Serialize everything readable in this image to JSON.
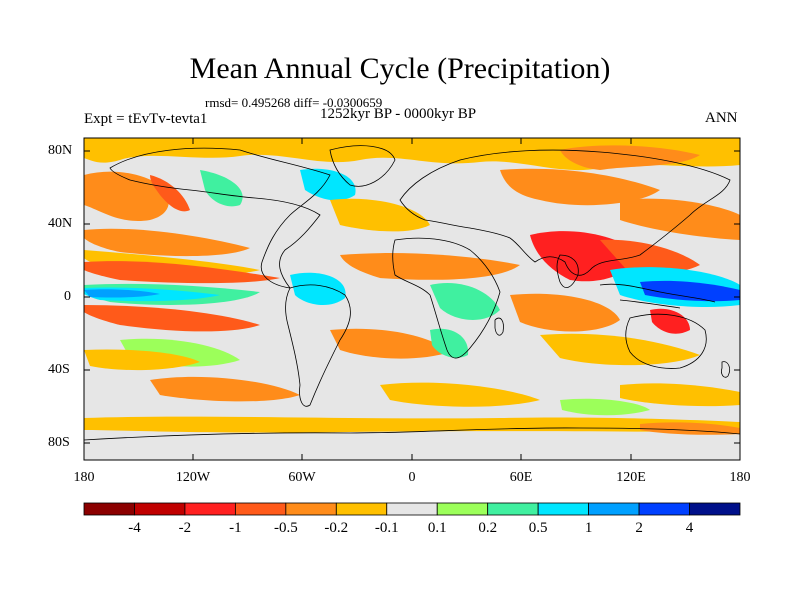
{
  "title": "Mean Annual Cycle (Precipitation)",
  "stats": "rmsd= 0.495268 diff= -0.0300659",
  "period": "1252kyr BP - 0000kyr BP",
  "experiment": "Expt = tEvTv-tevta1",
  "season": "ANN",
  "latitude_labels": [
    "80N",
    "40N",
    "0",
    "40S",
    "80S"
  ],
  "longitude_labels": [
    "180",
    "120W",
    "60W",
    "0",
    "60E",
    "120E",
    "180"
  ],
  "colorbar": {
    "labels": [
      "-4",
      "-2",
      "-1",
      "-0.5",
      "-0.2",
      "-0.1",
      "0.1",
      "0.2",
      "0.5",
      "1",
      "2",
      "4"
    ],
    "colors": [
      "#8b0000",
      "#c00000",
      "#ff2020",
      "#ff5a1a",
      "#ff8c1a",
      "#ffc000",
      "#e6e6e6",
      "#9cff5a",
      "#40f0a0",
      "#00e6ff",
      "#00a0ff",
      "#0040ff",
      "#00108a"
    ]
  },
  "field_colors": {
    "neutral": "#e6e6e6",
    "dry_light": "#ffc000",
    "dry_mid": "#ff8c1a",
    "dry_strong": "#ff5a1a",
    "dry_max": "#ff2020",
    "wet_light": "#9cff5a",
    "wet_mid": "#40f0a0",
    "wet_strong": "#00e6ff",
    "wet_max": "#00a0ff",
    "wet_peak": "#0040ff"
  }
}
